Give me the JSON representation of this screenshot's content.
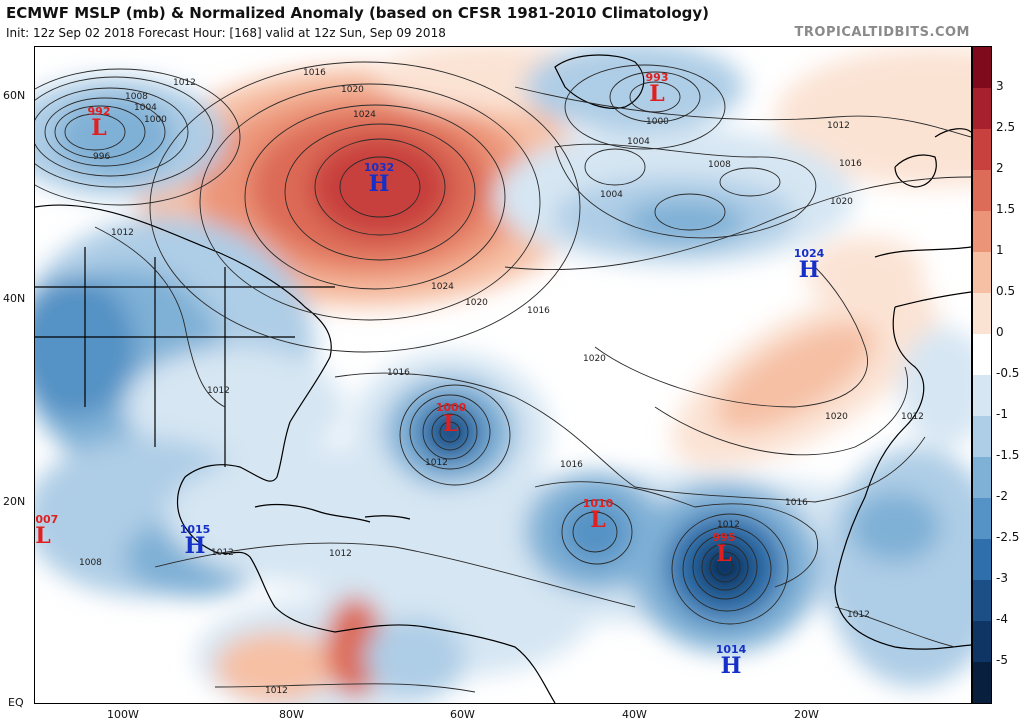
{
  "header": {
    "title": "ECMWF MSLP (mb) & Normalized Anomaly (based on CFSR 1981-2010 Climatology)",
    "subtitle": "Init: 12z Sep 02 2018   Forecast Hour: [168]   valid at 12z Sun, Sep 09 2018",
    "brand": "TROPICALTIDBITS.COM"
  },
  "axes": {
    "lat_labels": [
      "60N",
      "40N",
      "20N",
      "EQ"
    ],
    "lon_labels": [
      "100W",
      "80W",
      "60W",
      "40W",
      "20W"
    ]
  },
  "colorbar": {
    "labels": [
      "3",
      "2.5",
      "2",
      "1.5",
      "1",
      "0.5",
      "0",
      "-0.5",
      "-1",
      "-1.5",
      "-2",
      "-2.5",
      "-3",
      "-4",
      "-5"
    ],
    "colors": [
      "#7f0a1c",
      "#a6202e",
      "#c8413e",
      "#dc6b57",
      "#ec9478",
      "#f6c0a4",
      "#fbe3d4",
      "#ffffff",
      "#d6e6f3",
      "#aecde6",
      "#7fb0d6",
      "#5592c5",
      "#2f6fac",
      "#1b4f86",
      "#0e3563",
      "#081f3d"
    ]
  },
  "systems": [
    {
      "type": "L",
      "value": "992",
      "color": "#e02020"
    },
    {
      "type": "L",
      "value": "993",
      "color": "#e02020"
    },
    {
      "type": "H",
      "value": "1032",
      "color": "#1530c8"
    },
    {
      "type": "H",
      "value": "1024",
      "color": "#1530c8"
    },
    {
      "type": "L",
      "value": "1000",
      "color": "#e02020"
    },
    {
      "type": "L",
      "value": "1010",
      "color": "#e02020"
    },
    {
      "type": "L",
      "value": "995",
      "color": "#e02020"
    },
    {
      "type": "L",
      "value": "1007",
      "color": "#e02020"
    },
    {
      "type": "H",
      "value": "1015",
      "color": "#1530c8"
    },
    {
      "type": "H",
      "value": "1014",
      "color": "#1530c8"
    }
  ],
  "isobar_labels": [
    "1012",
    "1008",
    "1004",
    "1000",
    "996",
    "1016",
    "1020",
    "1024",
    "1020",
    "1016",
    "1012",
    "1000",
    "1004",
    "1004",
    "1008",
    "1012",
    "1016",
    "1020",
    "1020",
    "1020",
    "1016",
    "1012",
    "1016",
    "1012",
    "1016",
    "1012",
    "1012",
    "1008",
    "1012",
    "1012",
    "1012",
    "1012",
    "1012"
  ]
}
